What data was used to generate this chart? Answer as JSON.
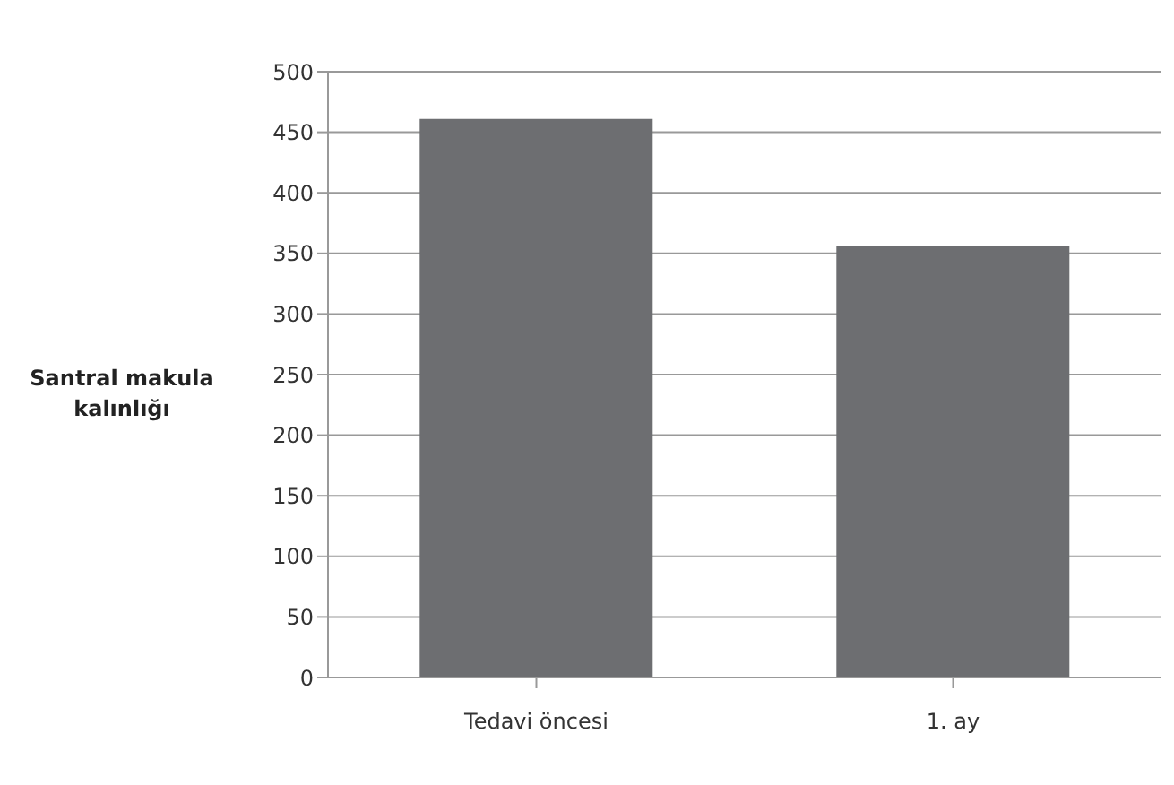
{
  "chart_data": {
    "type": "bar",
    "ylabel": "Santral makula kalınlığı",
    "categories": [
      "Tedavi öncesi",
      "1. ay"
    ],
    "values": [
      461,
      356
    ],
    "color": "#6d6e71",
    "ylim": [
      0,
      500
    ],
    "yticks": [
      0,
      50,
      100,
      150,
      200,
      250,
      300,
      350,
      400,
      450,
      500
    ],
    "grid": "y"
  }
}
